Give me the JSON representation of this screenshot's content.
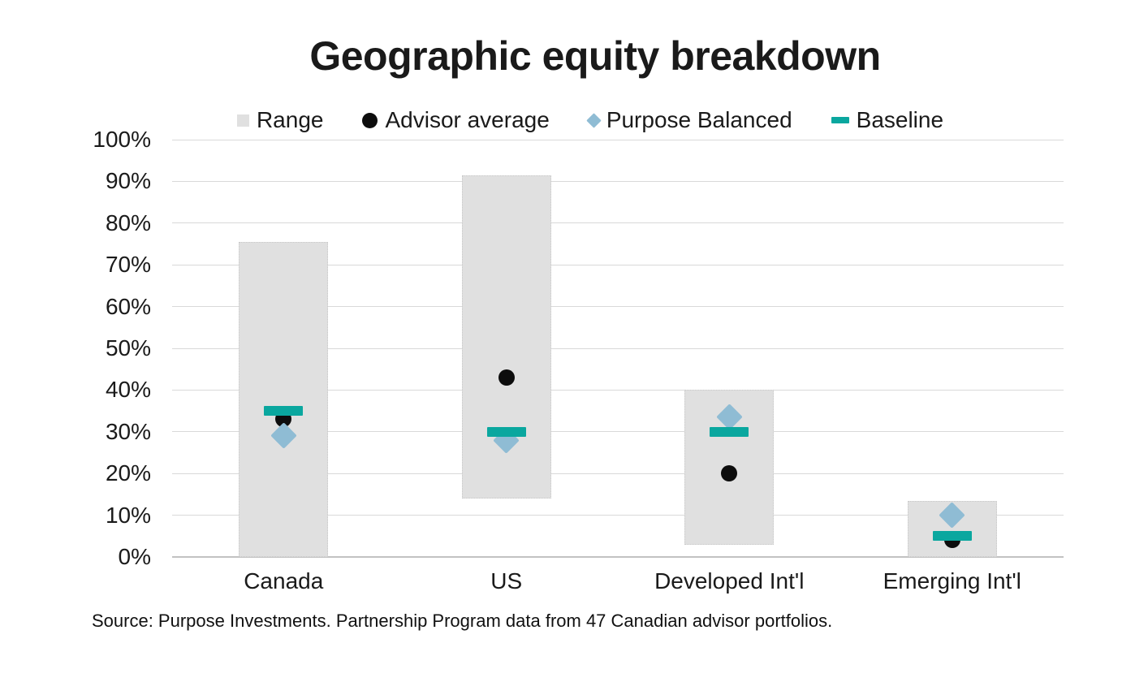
{
  "title": "Geographic equity breakdown",
  "source": "Source: Purpose Investments. Partnership Program data from 47 Canadian advisor portfolios.",
  "colors": {
    "background": "#ffffff",
    "gridline": "#d9d9d9",
    "axis_line": "#c2c2c2",
    "range_fill": "#e0e0e0",
    "advisor_average": "#0d0d0d",
    "purpose_balanced": "#8fbcd4",
    "baseline": "#0aa79f",
    "text": "#1a1a1a"
  },
  "chart_data": {
    "type": "bar",
    "subtype": "floating-range-bars-with-point-markers",
    "categories": [
      "Canada",
      "US",
      "Developed Int'l",
      "Emerging Int'l"
    ],
    "series": [
      {
        "name": "Range",
        "marker": "bar",
        "color": "#e0e0e0",
        "low": [
          0,
          14,
          3,
          0
        ],
        "high": [
          75.5,
          91.5,
          40,
          13.5
        ]
      },
      {
        "name": "Advisor average",
        "marker": "circle",
        "color": "#0d0d0d",
        "values": [
          33,
          43,
          20,
          4
        ]
      },
      {
        "name": "Purpose Balanced",
        "marker": "diamond",
        "color": "#8fbcd4",
        "values": [
          29,
          28,
          33.5,
          10
        ]
      },
      {
        "name": "Baseline",
        "marker": "dash",
        "color": "#0aa79f",
        "values": [
          35,
          30,
          30,
          5
        ]
      }
    ],
    "title": "Geographic equity breakdown",
    "xlabel": "",
    "ylabel": "",
    "ylim": [
      0,
      100
    ],
    "ytick_step": 10,
    "ytick_labels": [
      "0%",
      "10%",
      "20%",
      "30%",
      "40%",
      "50%",
      "60%",
      "70%",
      "80%",
      "90%",
      "100%"
    ],
    "grid": true,
    "legend": {
      "position": "top",
      "items": [
        {
          "label": "Range",
          "marker": "bar",
          "color": "#e0e0e0"
        },
        {
          "label": "Advisor average",
          "marker": "circle",
          "color": "#0d0d0d"
        },
        {
          "label": "Purpose Balanced",
          "marker": "diamond",
          "color": "#8fbcd4"
        },
        {
          "label": "Baseline",
          "marker": "dash",
          "color": "#0aa79f"
        }
      ]
    }
  }
}
